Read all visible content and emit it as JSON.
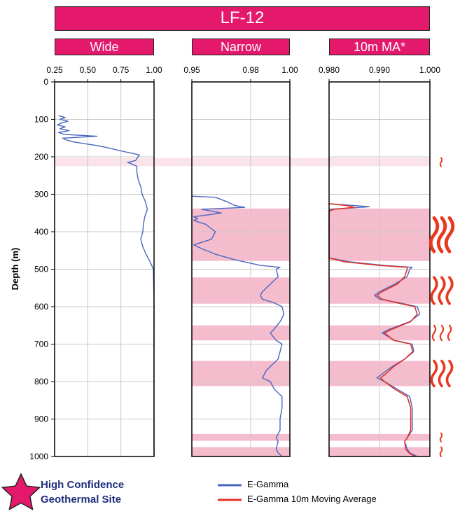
{
  "title": "LF-12",
  "panels": [
    {
      "label": "Wide",
      "ticks": [
        "0.25",
        "0.50",
        "0.75",
        "1.00"
      ]
    },
    {
      "label": "Narrow",
      "ticks": [
        "0.95",
        "0.98",
        "1.00"
      ]
    },
    {
      "label": "10m MA*",
      "ticks": [
        "0.980",
        "0.990",
        "1.000"
      ]
    }
  ],
  "y_axis": {
    "label": "Depth (m)",
    "ticks": [
      "0",
      "100",
      "200",
      "300",
      "400",
      "500",
      "600",
      "700",
      "800",
      "900",
      "1000"
    ]
  },
  "legend": {
    "gamma": "E-Gamma",
    "ma": "E-Gamma 10m Moving Average"
  },
  "site_label": {
    "line1": "High Confidence",
    "line2": "Geothermal Site"
  },
  "colors": {
    "header": "#e4196c",
    "gamma": "#4a67c0",
    "moving_average": "#e0322a",
    "zone": "#f4bccd",
    "flame": "#e8391f",
    "star": "#e4196c",
    "site_text": "#1f2d7d"
  },
  "chart_data": {
    "type": "line",
    "ylim": [
      0,
      1000
    ],
    "y_reversed": true,
    "panels": [
      {
        "name": "Wide",
        "xlim": [
          0.25,
          1.0
        ]
      },
      {
        "name": "Narrow",
        "xlim": [
          0.95,
          1.0
        ]
      },
      {
        "name": "10m MA*",
        "xlim": [
          0.98,
          1.0
        ]
      }
    ],
    "series": [
      {
        "name": "E-Gamma",
        "panel": 0,
        "depth_x": [
          [
            90,
            0.28
          ],
          [
            95,
            0.33
          ],
          [
            100,
            0.29
          ],
          [
            105,
            0.35
          ],
          [
            110,
            0.3
          ],
          [
            115,
            0.27
          ],
          [
            120,
            0.33
          ],
          [
            125,
            0.29
          ],
          [
            130,
            0.36
          ],
          [
            135,
            0.28
          ],
          [
            140,
            0.32
          ],
          [
            145,
            0.57
          ],
          [
            150,
            0.31
          ],
          [
            155,
            0.34
          ],
          [
            160,
            0.39
          ],
          [
            165,
            0.48
          ],
          [
            170,
            0.57
          ],
          [
            175,
            0.64
          ],
          [
            180,
            0.7
          ],
          [
            185,
            0.76
          ],
          [
            190,
            0.83
          ],
          [
            195,
            0.89
          ],
          [
            200,
            0.88
          ],
          [
            210,
            0.86
          ],
          [
            215,
            0.8
          ],
          [
            220,
            0.84
          ],
          [
            225,
            0.87
          ],
          [
            240,
            0.87
          ],
          [
            260,
            0.88
          ],
          [
            280,
            0.9
          ],
          [
            300,
            0.91
          ],
          [
            320,
            0.935
          ],
          [
            340,
            0.95
          ],
          [
            360,
            0.93
          ],
          [
            380,
            0.92
          ],
          [
            400,
            0.915
          ],
          [
            420,
            0.9
          ],
          [
            440,
            0.915
          ],
          [
            460,
            0.94
          ],
          [
            480,
            0.97
          ],
          [
            500,
            0.995
          ],
          [
            600,
            1.0
          ],
          [
            800,
            0.999
          ],
          [
            1000,
            1.0
          ]
        ]
      },
      {
        "name": "E-Gamma",
        "panel": 1,
        "depth_x": [
          [
            305,
            0.95
          ],
          [
            308,
            0.962
          ],
          [
            320,
            0.968
          ],
          [
            330,
            0.972
          ],
          [
            335,
            0.977
          ],
          [
            340,
            0.955
          ],
          [
            350,
            0.965
          ],
          [
            360,
            0.951
          ],
          [
            365,
            0.953
          ],
          [
            370,
            0.951
          ],
          [
            380,
            0.957
          ],
          [
            400,
            0.962
          ],
          [
            420,
            0.96
          ],
          [
            435,
            0.951
          ],
          [
            445,
            0.955
          ],
          [
            460,
            0.962
          ],
          [
            475,
            0.972
          ],
          [
            490,
            0.985
          ],
          [
            495,
            0.995
          ],
          [
            500,
            0.993
          ],
          [
            520,
            0.994
          ],
          [
            540,
            0.99
          ],
          [
            560,
            0.986
          ],
          [
            570,
            0.985
          ],
          [
            580,
            0.986
          ],
          [
            590,
            0.992
          ],
          [
            600,
            0.996
          ],
          [
            620,
            0.997
          ],
          [
            640,
            0.995
          ],
          [
            660,
            0.992
          ],
          [
            670,
            0.99
          ],
          [
            690,
            0.993
          ],
          [
            700,
            0.996
          ],
          [
            720,
            0.995
          ],
          [
            740,
            0.994
          ],
          [
            760,
            0.99
          ],
          [
            770,
            0.988
          ],
          [
            790,
            0.986
          ],
          [
            800,
            0.99
          ],
          [
            820,
            0.992
          ],
          [
            840,
            0.996
          ],
          [
            870,
            0.996
          ],
          [
            900,
            0.995
          ],
          [
            930,
            0.995
          ],
          [
            950,
            0.993
          ],
          [
            960,
            0.994
          ],
          [
            980,
            0.993
          ],
          [
            990,
            0.994
          ],
          [
            1000,
            0.996
          ]
        ]
      },
      {
        "name": "E-Gamma",
        "panel": 2,
        "depth_x": [
          [
            325,
            0.98
          ],
          [
            330,
            0.985
          ],
          [
            333,
            0.988
          ],
          [
            336,
            0.985
          ],
          [
            340,
            0.98
          ],
          [
            470,
            0.98
          ],
          [
            480,
            0.984
          ],
          [
            490,
            0.991
          ],
          [
            495,
            0.9965
          ],
          [
            500,
            0.996
          ],
          [
            520,
            0.9955
          ],
          [
            540,
            0.993
          ],
          [
            560,
            0.99
          ],
          [
            570,
            0.989
          ],
          [
            580,
            0.99
          ],
          [
            590,
            0.994
          ],
          [
            600,
            0.9975
          ],
          [
            620,
            0.998
          ],
          [
            640,
            0.996
          ],
          [
            660,
            0.992
          ],
          [
            670,
            0.9905
          ],
          [
            690,
            0.993
          ],
          [
            700,
            0.9965
          ],
          [
            720,
            0.9968
          ],
          [
            740,
            0.995
          ],
          [
            760,
            0.9925
          ],
          [
            780,
            0.9905
          ],
          [
            790,
            0.9895
          ],
          [
            800,
            0.991
          ],
          [
            820,
            0.9935
          ],
          [
            840,
            0.996
          ],
          [
            870,
            0.9965
          ],
          [
            900,
            0.9965
          ],
          [
            930,
            0.9965
          ],
          [
            950,
            0.9955
          ],
          [
            960,
            0.995
          ],
          [
            980,
            0.9955
          ],
          [
            990,
            0.996
          ],
          [
            1000,
            0.9975
          ]
        ]
      },
      {
        "name": "E-Gamma 10m Moving Average",
        "panel": 2,
        "depth_x": [
          [
            325,
            0.98
          ],
          [
            330,
            0.9835
          ],
          [
            335,
            0.985
          ],
          [
            340,
            0.981
          ],
          [
            345,
            0.98
          ],
          [
            470,
            0.98
          ],
          [
            480,
            0.983
          ],
          [
            490,
            0.99
          ],
          [
            495,
            0.9955
          ],
          [
            500,
            0.9955
          ],
          [
            520,
            0.995
          ],
          [
            540,
            0.9935
          ],
          [
            560,
            0.9905
          ],
          [
            570,
            0.9895
          ],
          [
            580,
            0.9905
          ],
          [
            590,
            0.9935
          ],
          [
            600,
            0.997
          ],
          [
            620,
            0.9975
          ],
          [
            640,
            0.9962
          ],
          [
            660,
            0.9925
          ],
          [
            670,
            0.991
          ],
          [
            690,
            0.9928
          ],
          [
            700,
            0.9962
          ],
          [
            720,
            0.9966
          ],
          [
            740,
            0.995
          ],
          [
            760,
            0.9928
          ],
          [
            780,
            0.9912
          ],
          [
            790,
            0.9902
          ],
          [
            800,
            0.991
          ],
          [
            820,
            0.993
          ],
          [
            840,
            0.9955
          ],
          [
            870,
            0.9962
          ],
          [
            900,
            0.9962
          ],
          [
            930,
            0.9962
          ],
          [
            950,
            0.9955
          ],
          [
            960,
            0.995
          ],
          [
            980,
            0.9952
          ],
          [
            990,
            0.9958
          ],
          [
            1000,
            0.997
          ]
        ]
      }
    ],
    "zones": [
      {
        "depth": [
          203,
          225
        ],
        "confidence": "low"
      },
      {
        "depth": [
          338,
          478
        ],
        "confidence": "high"
      },
      {
        "depth": [
          522,
          592
        ],
        "confidence": "high"
      },
      {
        "depth": [
          650,
          690
        ],
        "confidence": "high"
      },
      {
        "depth": [
          745,
          812
        ],
        "confidence": "high"
      },
      {
        "depth": [
          940,
          958
        ],
        "confidence": "medium"
      },
      {
        "depth": [
          975,
          1000
        ],
        "confidence": "medium"
      }
    ]
  }
}
